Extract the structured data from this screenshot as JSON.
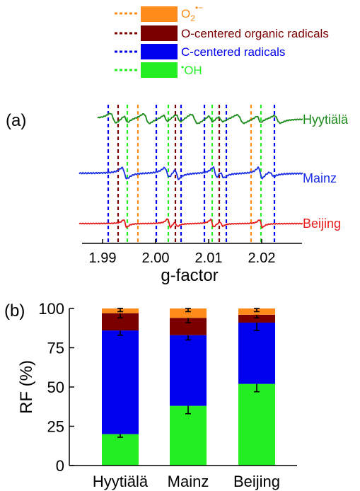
{
  "colors": {
    "o2": "#ff8c1a",
    "ocentered": "#7a0000",
    "ccentered": "#0000ee",
    "oh": "#22ee22",
    "hyytiala": "#1a8a1a",
    "mainz": "#1a2ee6",
    "beijing": "#e61a1a"
  },
  "legend": {
    "items": [
      {
        "key": "o2",
        "label": "O",
        "sub": "2",
        "sup": "•−"
      },
      {
        "key": "ocentered",
        "label": "O-centered organic radicals"
      },
      {
        "key": "ccentered",
        "label": "C-centered radicals"
      },
      {
        "key": "oh",
        "label": "OH",
        "pre": "•"
      }
    ]
  },
  "panel_a": {
    "label": "(a)",
    "xlabel": "g-factor",
    "xticks": [
      "1.99",
      "2.00",
      "2.01",
      "2.02"
    ],
    "spectra": [
      {
        "name": "Hyytiälä",
        "color_key": "hyytiala"
      },
      {
        "name": "Mainz",
        "color_key": "mainz"
      },
      {
        "name": "Beijing",
        "color_key": "beijing"
      }
    ]
  },
  "panel_b": {
    "label": "(b)",
    "ylabel": "RF (%)",
    "yticks": [
      "0",
      "25",
      "50",
      "75",
      "100"
    ]
  },
  "chart_data": [
    {
      "type": "line",
      "panel": "a",
      "xlabel": "g-factor",
      "x_ticks": [
        1.99,
        2.0,
        2.01,
        2.02
      ],
      "series": [
        {
          "name": "Hyytiälä"
        },
        {
          "name": "Mainz"
        },
        {
          "name": "Beijing"
        }
      ]
    },
    {
      "type": "bar",
      "panel": "b",
      "stacked": true,
      "categories": [
        "Hyytiälä",
        "Mainz",
        "Beijing"
      ],
      "ylabel": "RF (%)",
      "ylim": [
        0,
        100
      ],
      "series": [
        {
          "name": "•OH",
          "color_key": "oh",
          "values": [
            20,
            38,
            52
          ],
          "errors": [
            2,
            5,
            5
          ]
        },
        {
          "name": "C-centered radicals",
          "color_key": "ccentered",
          "values": [
            66,
            45,
            39
          ],
          "errors": [
            3,
            3,
            5
          ]
        },
        {
          "name": "O-centered organic radicals",
          "color_key": "ocentered",
          "values": [
            11,
            11,
            5
          ],
          "errors": [
            3,
            3,
            2
          ]
        },
        {
          "name": "O2•−",
          "color_key": "o2",
          "values": [
            3,
            6,
            4
          ],
          "errors": [
            2,
            2,
            2
          ]
        }
      ]
    }
  ]
}
